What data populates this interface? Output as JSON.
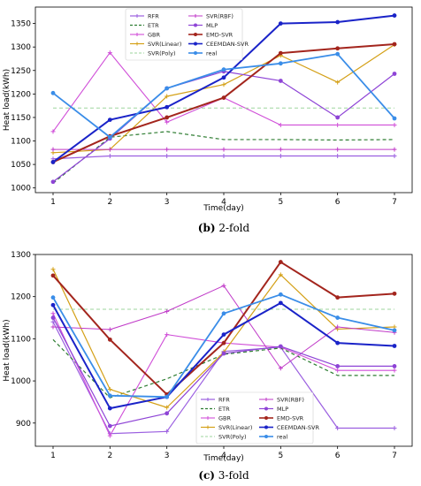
{
  "chart_data": [
    {
      "type": "line",
      "caption_bold": "(b)",
      "caption_rest": " 2-fold",
      "xlabel": "Time(day)",
      "ylabel": "Heat load(kWh)",
      "xlim": [
        1,
        7
      ],
      "ylim": [
        990,
        1385
      ],
      "x": [
        1,
        2,
        3,
        4,
        5,
        6,
        7
      ],
      "xticks": [
        1,
        2,
        3,
        4,
        5,
        6,
        7
      ],
      "yticks": [
        1000,
        1050,
        1100,
        1150,
        1200,
        1250,
        1300,
        1350
      ],
      "grid": false,
      "legend_position": "top-center",
      "series": [
        {
          "name": "RFR",
          "color": "#9b5fe0",
          "values": [
            1062,
            1068,
            1068,
            1068,
            1068,
            1068,
            1068
          ],
          "style": "solid",
          "marker": "plus",
          "width": 1.2
        },
        {
          "name": "ETR",
          "color": "#2e7d32",
          "values": [
            1010,
            1108,
            1120,
            1103,
            1103,
            1102,
            1103
          ],
          "style": "dashed",
          "marker": "none",
          "width": 1.2
        },
        {
          "name": "GBR",
          "color": "#d04ed8",
          "values": [
            1120,
            1288,
            1140,
            1192,
            1134,
            1134,
            1134
          ],
          "style": "solid",
          "marker": "plus",
          "width": 1.1
        },
        {
          "name": "SVR(Linear)",
          "color": "#d4a017",
          "values": [
            1075,
            1082,
            1195,
            1220,
            1282,
            1225,
            1305
          ],
          "style": "solid",
          "marker": "plus",
          "width": 1.2
        },
        {
          "name": "SVR(Poly)",
          "color": "#9ed69e",
          "values": [
            1170,
            1170,
            1170,
            1170,
            1170,
            1170,
            1170
          ],
          "style": "dashed",
          "marker": "none",
          "width": 1.0
        },
        {
          "name": "SVR(RBF)",
          "color": "#c03ac8",
          "values": [
            1082,
            1082,
            1082,
            1082,
            1082,
            1082,
            1082
          ],
          "style": "solid",
          "marker": "plus",
          "width": 1.0
        },
        {
          "name": "MLP",
          "color": "#8e44d6",
          "values": [
            1013,
            1105,
            1212,
            1248,
            1228,
            1150,
            1243
          ],
          "style": "solid",
          "marker": "dot",
          "width": 1.2
        },
        {
          "name": "EMD-SVR",
          "color": "#a3251d",
          "values": [
            1055,
            1110,
            1150,
            1192,
            1287,
            1297,
            1306
          ],
          "style": "solid",
          "marker": "dot",
          "width": 2.0
        },
        {
          "name": "CEEMDAN-SVR",
          "color": "#1a23c8",
          "values": [
            1055,
            1145,
            1172,
            1235,
            1350,
            1353,
            1367
          ],
          "style": "solid",
          "marker": "dot",
          "width": 2.0
        },
        {
          "name": "real",
          "color": "#3a8de8",
          "values": [
            1202,
            1108,
            1212,
            1252,
            1265,
            1285,
            1148
          ],
          "style": "solid",
          "marker": "dot",
          "width": 1.8
        }
      ]
    },
    {
      "type": "line",
      "caption_bold": "(c)",
      "caption_rest": " 3-fold",
      "xlabel": "Time(day)",
      "ylabel": "Heat load(kWh)",
      "xlim": [
        1,
        7
      ],
      "ylim": [
        845,
        1300
      ],
      "x": [
        1,
        2,
        3,
        4,
        5,
        6,
        7
      ],
      "xticks": [
        1,
        2,
        3,
        4,
        5,
        6,
        7
      ],
      "yticks": [
        900,
        1000,
        1100,
        1200,
        1300
      ],
      "grid": false,
      "legend_position": "bottom-center",
      "series": [
        {
          "name": "RFR",
          "color": "#9b5fe0",
          "values": [
            1140,
            875,
            880,
            1070,
            1080,
            888,
            888
          ],
          "style": "solid",
          "marker": "plus",
          "width": 1.2
        },
        {
          "name": "ETR",
          "color": "#2e7d32",
          "values": [
            1098,
            960,
            1005,
            1063,
            1078,
            1013,
            1013
          ],
          "style": "dashed",
          "marker": "none",
          "width": 1.2
        },
        {
          "name": "GBR",
          "color": "#d04ed8",
          "values": [
            1160,
            870,
            1110,
            1090,
            1080,
            1025,
            1025
          ],
          "style": "solid",
          "marker": "plus",
          "width": 1.1
        },
        {
          "name": "SVR(Linear)",
          "color": "#d4a017",
          "values": [
            1265,
            980,
            937,
            1068,
            1252,
            1123,
            1128
          ],
          "style": "solid",
          "marker": "plus",
          "width": 1.2
        },
        {
          "name": "SVR(Poly)",
          "color": "#9ed69e",
          "values": [
            1170,
            1170,
            1170,
            1170,
            1170,
            1170,
            1170
          ],
          "style": "dashed",
          "marker": "none",
          "width": 1.0
        },
        {
          "name": "SVR(RBF)",
          "color": "#c03ac8",
          "values": [
            1128,
            1122,
            1165,
            1226,
            1030,
            1128,
            1115
          ],
          "style": "solid",
          "marker": "plus",
          "width": 1.0
        },
        {
          "name": "MLP",
          "color": "#8e44d6",
          "values": [
            1150,
            893,
            923,
            1065,
            1082,
            1035,
            1035
          ],
          "style": "solid",
          "marker": "dot",
          "width": 1.2
        },
        {
          "name": "EMD-SVR",
          "color": "#a3251d",
          "values": [
            1250,
            1098,
            968,
            1090,
            1282,
            1198,
            1207
          ],
          "style": "solid",
          "marker": "dot",
          "width": 2.0
        },
        {
          "name": "CEEMDAN-SVR",
          "color": "#1a23c8",
          "values": [
            1180,
            935,
            962,
            1110,
            1185,
            1090,
            1083
          ],
          "style": "solid",
          "marker": "dot",
          "width": 2.0
        },
        {
          "name": "real",
          "color": "#3a8de8",
          "values": [
            1198,
            965,
            962,
            1160,
            1205,
            1150,
            1120
          ],
          "style": "solid",
          "marker": "dot",
          "width": 1.8
        }
      ]
    }
  ]
}
